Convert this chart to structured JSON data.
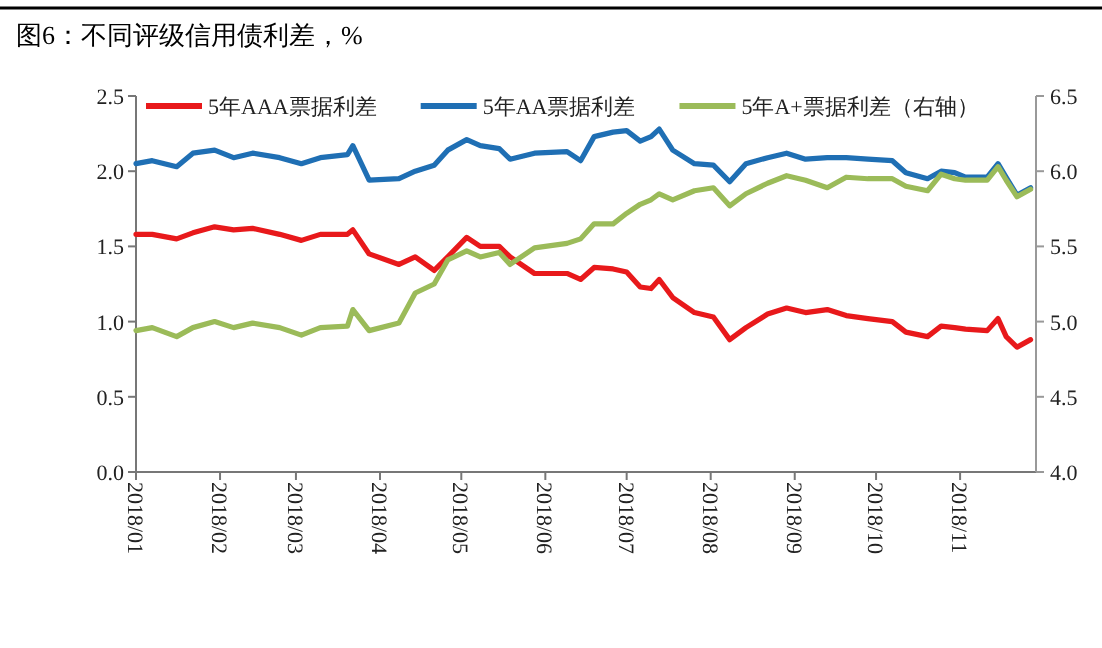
{
  "chart_data": {
    "type": "line",
    "title": "图6：不同评级信用债利差，%",
    "legend": "top",
    "x": [
      "2018-01-01",
      "2018-01-07",
      "2018-01-16",
      "2018-01-22",
      "2018-01-30",
      "2018-02-06",
      "2018-02-13",
      "2018-02-23",
      "2018-03-03",
      "2018-03-10",
      "2018-03-20",
      "2018-03-22",
      "2018-03-28",
      "2018-04-08",
      "2018-04-14",
      "2018-04-21",
      "2018-04-26",
      "2018-05-03",
      "2018-05-08",
      "2018-05-15",
      "2018-05-19",
      "2018-05-28",
      "2018-06-09",
      "2018-06-14",
      "2018-06-19",
      "2018-06-26",
      "2018-07-01",
      "2018-07-06",
      "2018-07-10",
      "2018-07-13",
      "2018-07-18",
      "2018-07-26",
      "2018-08-02",
      "2018-08-08",
      "2018-08-14",
      "2018-08-22",
      "2018-08-29",
      "2018-09-05",
      "2018-09-13",
      "2018-09-20",
      "2018-09-28",
      "2018-10-07",
      "2018-10-12",
      "2018-10-20",
      "2018-10-25",
      "2018-10-30",
      "2018-11-03",
      "2018-11-11",
      "2018-11-15",
      "2018-11-18",
      "2018-11-22",
      "2018-11-27"
    ],
    "series": [
      {
        "name": "5年AAA票据利差",
        "color": "#e8191b",
        "values": [
          1.58,
          1.58,
          1.55,
          1.59,
          1.63,
          1.61,
          1.62,
          1.58,
          1.54,
          1.58,
          1.58,
          1.61,
          1.45,
          1.38,
          1.43,
          1.34,
          1.43,
          1.56,
          1.5,
          1.5,
          1.43,
          1.32,
          1.32,
          1.28,
          1.36,
          1.35,
          1.33,
          1.23,
          1.22,
          1.28,
          1.16,
          1.06,
          1.03,
          0.88,
          0.96,
          1.05,
          1.09,
          1.06,
          1.08,
          1.04,
          1.02,
          1.0,
          0.93,
          0.9,
          0.97,
          0.96,
          0.95,
          0.94,
          1.02,
          0.9,
          0.83,
          0.88
        ]
      },
      {
        "name": "5年AA票据利差",
        "color": "#1f6fb4",
        "values": [
          2.05,
          2.07,
          2.03,
          2.12,
          2.14,
          2.09,
          2.12,
          2.09,
          2.05,
          2.09,
          2.11,
          2.17,
          1.94,
          1.95,
          2.0,
          2.04,
          2.14,
          2.21,
          2.17,
          2.15,
          2.08,
          2.12,
          2.13,
          2.07,
          2.23,
          2.26,
          2.27,
          2.2,
          2.23,
          2.28,
          2.14,
          2.05,
          2.04,
          1.93,
          2.05,
          2.09,
          2.12,
          2.08,
          2.09,
          2.09,
          2.08,
          2.07,
          1.99,
          1.95,
          2.0,
          1.99,
          1.96,
          1.96,
          2.05,
          1.96,
          1.84,
          1.89
        ]
      },
      {
        "name": "5年A+票据利差（右轴）",
        "color": "#9bbb59",
        "axis": "y2",
        "values": [
          4.94,
          4.96,
          4.9,
          4.96,
          5.0,
          4.96,
          4.99,
          4.96,
          4.91,
          4.96,
          4.97,
          5.08,
          4.94,
          4.99,
          5.19,
          5.25,
          5.41,
          5.47,
          5.43,
          5.46,
          5.38,
          5.49,
          5.52,
          5.55,
          5.65,
          5.65,
          5.72,
          5.78,
          5.81,
          5.85,
          5.81,
          5.87,
          5.89,
          5.77,
          5.85,
          5.92,
          5.97,
          5.94,
          5.89,
          5.96,
          5.95,
          5.95,
          5.9,
          5.87,
          5.98,
          5.95,
          5.94,
          5.94,
          6.03,
          5.94,
          5.83,
          5.88
        ]
      }
    ],
    "xlim": [
      "2018-01-01",
      "2018-11-29"
    ],
    "xticks": [
      {
        "value": "2018-01-01",
        "label": "2018/01"
      },
      {
        "value": "2018-02-01",
        "label": "2018/02"
      },
      {
        "value": "2018-03-01",
        "label": "2018/03"
      },
      {
        "value": "2018-04-01",
        "label": "2018/04"
      },
      {
        "value": "2018-05-01",
        "label": "2018/05"
      },
      {
        "value": "2018-06-01",
        "label": "2018/06"
      },
      {
        "value": "2018-07-01",
        "label": "2018/07"
      },
      {
        "value": "2018-08-01",
        "label": "2018/08"
      },
      {
        "value": "2018-09-01",
        "label": "2018/09"
      },
      {
        "value": "2018-10-01",
        "label": "2018/10"
      },
      {
        "value": "2018-11-01",
        "label": "2018/11"
      }
    ],
    "ylim": [
      0,
      2.5
    ],
    "yticks": [
      {
        "value": 0,
        "label": "0.0"
      },
      {
        "value": 0.5,
        "label": "0.5"
      },
      {
        "value": 1,
        "label": "1.0"
      },
      {
        "value": 1.5,
        "label": "1.5"
      },
      {
        "value": 2,
        "label": "2.0"
      },
      {
        "value": 2.5,
        "label": "2.5"
      }
    ],
    "y2lim": [
      4,
      6.5
    ],
    "y2ticks": [
      {
        "value": 4,
        "label": "4.0"
      },
      {
        "value": 4.5,
        "label": "4.5"
      },
      {
        "value": 5,
        "label": "5.0"
      },
      {
        "value": 5.5,
        "label": "5.5"
      },
      {
        "value": 6,
        "label": "6.0"
      },
      {
        "value": 6.5,
        "label": "6.5"
      }
    ]
  }
}
